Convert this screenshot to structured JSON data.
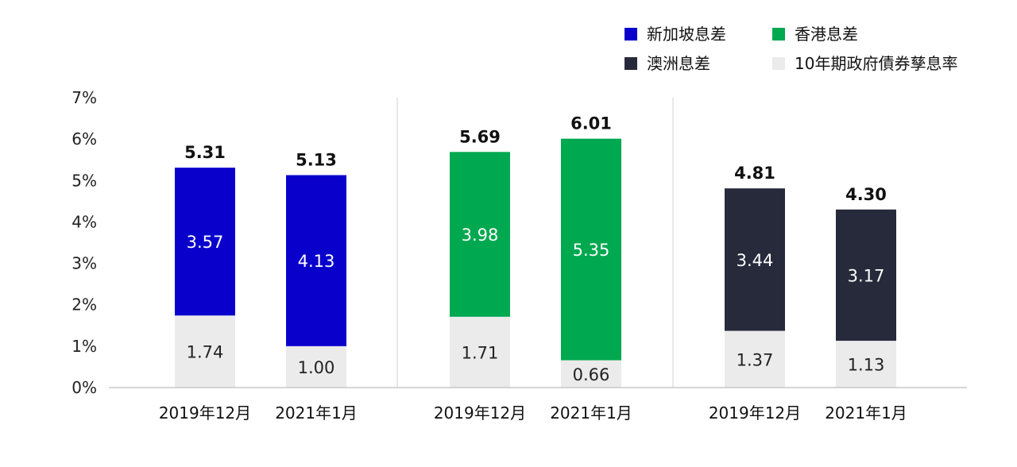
{
  "chart_data": {
    "type": "bar",
    "stacked": true,
    "yticks": [
      "0%",
      "1%",
      "2%",
      "3%",
      "4%",
      "5%",
      "6%",
      "7%"
    ],
    "ylim": [
      0,
      7
    ],
    "grid": false,
    "legend_position": "top-right",
    "legend": [
      {
        "label": "新加坡息差",
        "color": "#0a00cc"
      },
      {
        "label": "香港息差",
        "color": "#00a84f"
      },
      {
        "label": "澳洲息差",
        "color": "#272a3b"
      },
      {
        "label": "10年期政府債券孳息率",
        "color": "#ebebeb"
      }
    ],
    "groups": [
      {
        "color": "#0a00cc",
        "bars": [
          {
            "category": "2019年12月",
            "base": 1.74,
            "spread": 3.57,
            "total": 5.31,
            "base_label": "1.74",
            "spread_label": "3.57",
            "total_label": "5.31"
          },
          {
            "category": "2021年1月",
            "base": 1.0,
            "spread": 4.13,
            "total": 5.13,
            "base_label": "1.00",
            "spread_label": "4.13",
            "total_label": "5.13"
          }
        ]
      },
      {
        "color": "#00a84f",
        "bars": [
          {
            "category": "2019年12月",
            "base": 1.71,
            "spread": 3.98,
            "total": 5.69,
            "base_label": "1.71",
            "spread_label": "3.98",
            "total_label": "5.69"
          },
          {
            "category": "2021年1月",
            "base": 0.66,
            "spread": 5.35,
            "total": 6.01,
            "base_label": "0.66",
            "spread_label": "5.35",
            "total_label": "6.01"
          }
        ]
      },
      {
        "color": "#272a3b",
        "bars": [
          {
            "category": "2019年12月",
            "base": 1.37,
            "spread": 3.44,
            "total": 4.81,
            "base_label": "1.37",
            "spread_label": "3.44",
            "total_label": "4.81"
          },
          {
            "category": "2021年1月",
            "base": 1.13,
            "spread": 3.17,
            "total": 4.3,
            "base_label": "1.13",
            "spread_label": "3.17",
            "total_label": "4.30"
          }
        ]
      }
    ],
    "colors": {
      "base": "#ebebeb",
      "base_text": "#222222",
      "spread_text": "#ffffff",
      "axis": "#bdbdbd",
      "divider": "#d0d0d0"
    }
  }
}
